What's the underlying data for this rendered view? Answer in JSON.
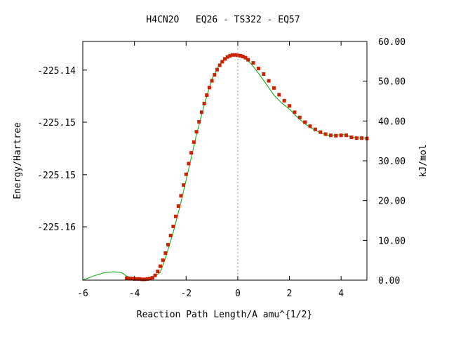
{
  "chart_data": {
    "type": "line",
    "title": "H4CN2O   EQ26 - TS322 - EQ57",
    "xlabel": "Reaction Path Length/A amu^{1/2}",
    "ylabel_left": "Energy/Hartree",
    "ylabel_right": "kJ/mol",
    "xlim": [
      -6,
      5
    ],
    "ylim_kjmol": [
      0,
      60
    ],
    "x_ticks": [
      -6,
      -4,
      -2,
      0,
      2,
      4
    ],
    "x_tick_labels": [
      "-6",
      "-4",
      "-2",
      "0",
      "2",
      "4"
    ],
    "left_tick_labels": [
      "-225.14",
      "-225.15",
      "-225.15",
      "-225.16"
    ],
    "left_tick_kjmol": [
      52.8,
      39.7,
      26.5,
      13.4
    ],
    "right_ticks": [
      0,
      10,
      20,
      30,
      40,
      50,
      60
    ],
    "right_tick_labels": [
      "0.00",
      "10.00",
      "20.00",
      "30.00",
      "40.00",
      "50.00",
      "60.00"
    ],
    "ts_marker_x": 0,
    "grid": false,
    "series": [
      {
        "role": "fitted-curve",
        "color": "#00aa00",
        "x": [
          -6.0,
          -5.6,
          -5.2,
          -4.8,
          -4.5,
          -4.3,
          -4.0,
          -3.6,
          -3.3,
          -3.0,
          -2.8,
          -2.5,
          -2.2,
          -1.9,
          -1.6,
          -1.3,
          -1.0,
          -0.7,
          -0.4,
          -0.2,
          0.0,
          0.2,
          0.5,
          0.8,
          1.1,
          1.4,
          1.7,
          2.0,
          2.3,
          2.6,
          2.9,
          3.2,
          3.5,
          3.8,
          4.1,
          4.4,
          4.7,
          5.0
        ],
        "y": [
          0.0,
          1.0,
          1.8,
          2.1,
          1.9,
          1.0,
          0.4,
          0.2,
          0.5,
          2.0,
          5.5,
          12.0,
          19.5,
          28.0,
          36.5,
          44.0,
          50.5,
          54.3,
          56.0,
          56.6,
          56.5,
          56.2,
          54.5,
          52.0,
          49.3,
          46.5,
          44.5,
          43.0,
          41.0,
          39.3,
          38.0,
          37.0,
          36.4,
          36.5,
          36.6,
          36.0,
          35.7,
          35.7
        ]
      },
      {
        "role": "data-points",
        "color": "#cc2200",
        "x": [
          -4.3,
          -4.2,
          -4.1,
          -4.0,
          -3.9,
          -3.8,
          -3.7,
          -3.6,
          -3.5,
          -3.4,
          -3.3,
          -3.2,
          -3.1,
          -3.0,
          -2.9,
          -2.8,
          -2.7,
          -2.6,
          -2.5,
          -2.4,
          -2.3,
          -2.2,
          -2.1,
          -2.0,
          -1.9,
          -1.8,
          -1.7,
          -1.6,
          -1.5,
          -1.4,
          -1.3,
          -1.2,
          -1.1,
          -1.0,
          -0.9,
          -0.8,
          -0.7,
          -0.6,
          -0.5,
          -0.4,
          -0.3,
          -0.2,
          -0.1,
          0.0,
          0.1,
          0.2,
          0.3,
          0.4,
          0.6,
          0.8,
          1.0,
          1.2,
          1.4,
          1.6,
          1.8,
          2.0,
          2.2,
          2.4,
          2.6,
          2.8,
          3.0,
          3.2,
          3.4,
          3.6,
          3.8,
          4.0,
          4.2,
          4.4,
          4.6,
          4.8,
          5.0
        ],
        "y": [
          0.5,
          0.4,
          0.4,
          0.3,
          0.3,
          0.3,
          0.2,
          0.2,
          0.3,
          0.4,
          0.6,
          1.2,
          2.2,
          3.5,
          5.0,
          6.8,
          8.9,
          11.2,
          13.5,
          16.0,
          18.6,
          21.2,
          23.9,
          26.6,
          29.3,
          32.0,
          34.7,
          37.3,
          39.8,
          42.2,
          44.4,
          46.5,
          48.4,
          50.1,
          51.6,
          52.9,
          54.0,
          54.9,
          55.6,
          56.1,
          56.4,
          56.6,
          56.6,
          56.5,
          56.4,
          56.2,
          55.9,
          55.4,
          54.6,
          53.2,
          51.8,
          50.1,
          48.3,
          46.6,
          45.1,
          43.8,
          42.2,
          40.9,
          39.7,
          38.7,
          37.9,
          37.2,
          36.7,
          36.4,
          36.3,
          36.4,
          36.4,
          35.9,
          35.7,
          35.7,
          35.6
        ]
      }
    ]
  }
}
